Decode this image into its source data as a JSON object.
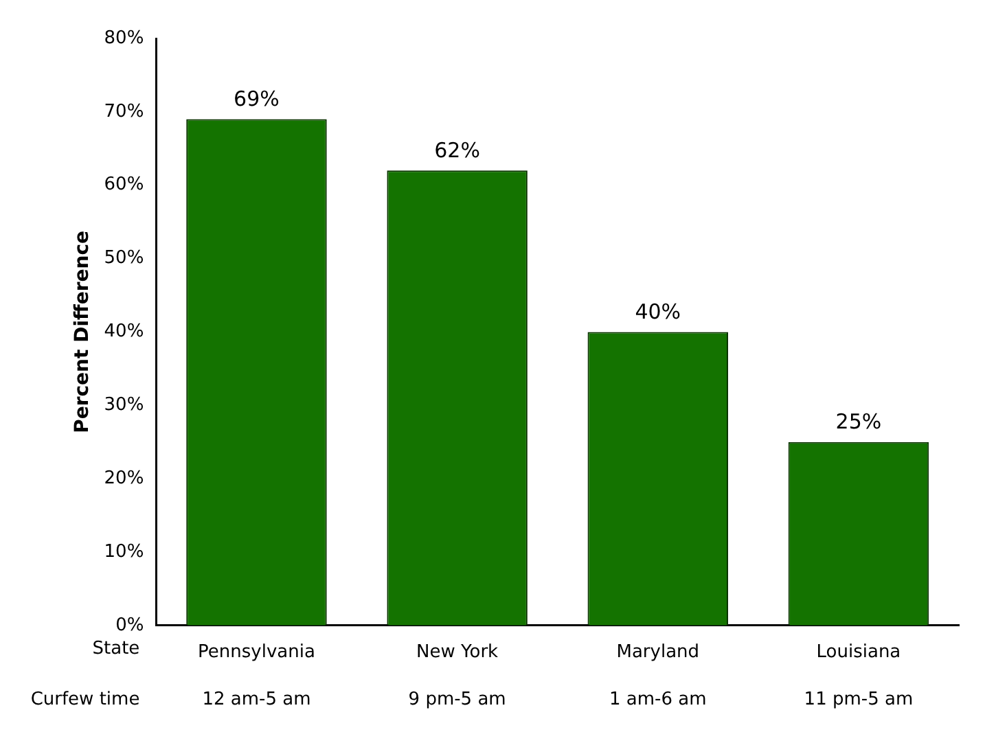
{
  "chart_data": {
    "type": "bar",
    "ylabel": "Percent Difference",
    "categories": [
      "Pennsylvania",
      "New York",
      "Maryland",
      "Louisiana"
    ],
    "values": [
      69,
      62,
      40,
      25
    ],
    "color": "#147300",
    "value_labels": [
      "69%",
      "62%",
      "40%",
      "25%"
    ],
    "ylim": [
      0,
      80
    ],
    "yticks": [
      {
        "value": 0,
        "label": "0%"
      },
      {
        "value": 10,
        "label": "10%"
      },
      {
        "value": 20,
        "label": "20%"
      },
      {
        "value": 30,
        "label": "30%"
      },
      {
        "value": 40,
        "label": "40%"
      },
      {
        "value": 50,
        "label": "50%"
      },
      {
        "value": 60,
        "label": "60%"
      },
      {
        "value": 70,
        "label": "70%"
      },
      {
        "value": 80,
        "label": "80%"
      }
    ],
    "grid": false,
    "legend": false,
    "annotations": [
      "State",
      "Curfew time",
      "12 am-5 am",
      "9 pm-5 am",
      "1 am-6 am",
      "11 pm-5 am"
    ]
  }
}
